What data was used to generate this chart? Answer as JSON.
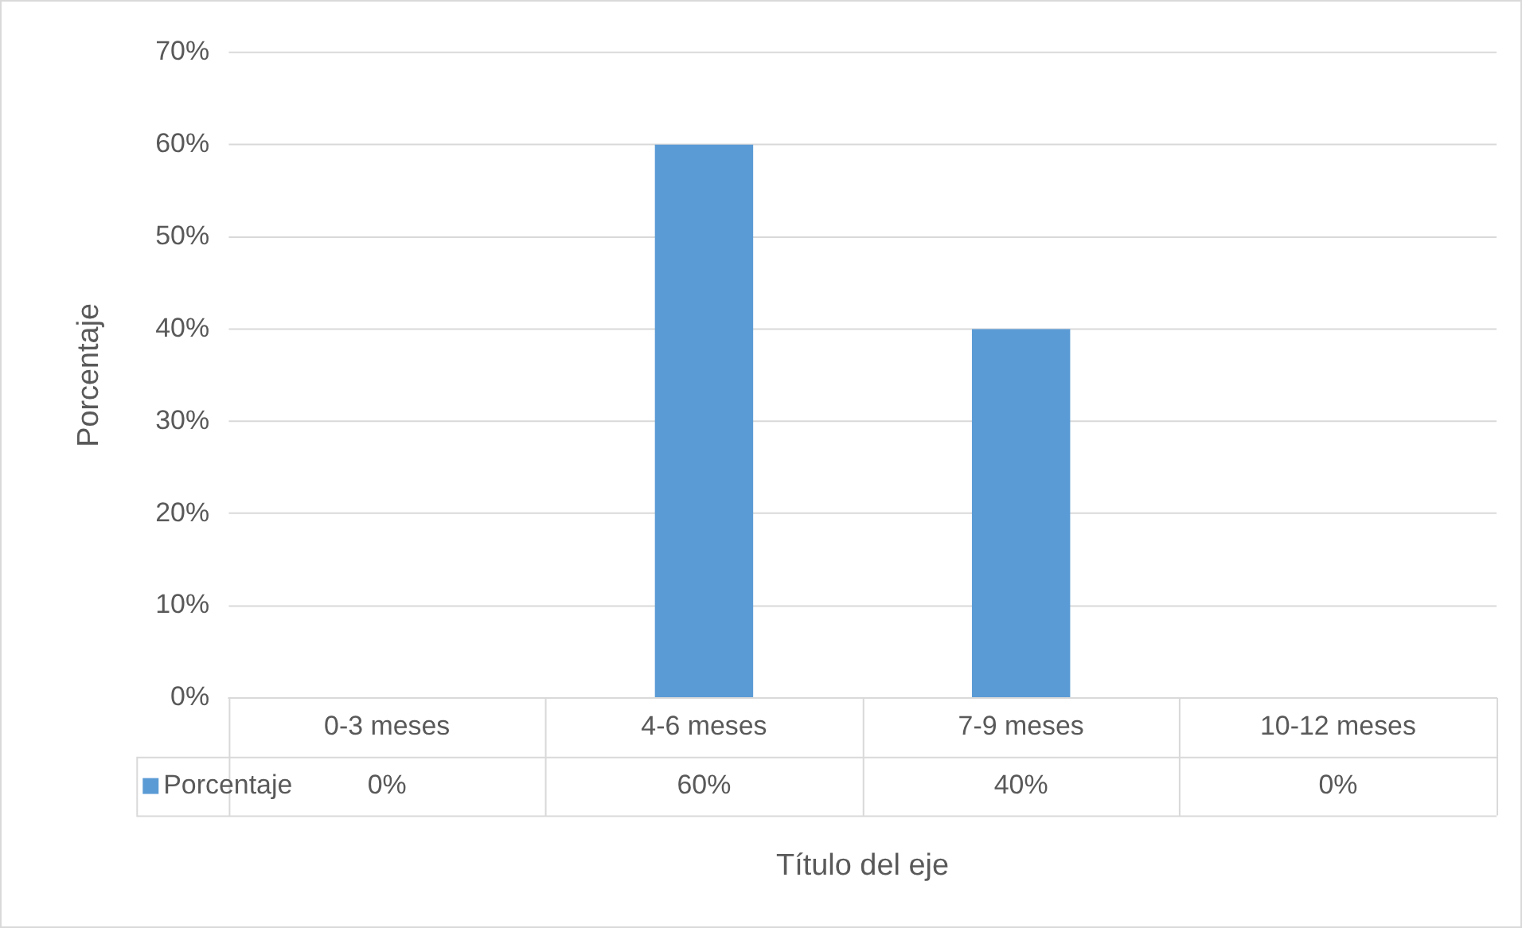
{
  "chart_data": {
    "type": "bar",
    "xlabel": "Título del eje",
    "ylabel": "Porcentaje",
    "categories": [
      "0-3 meses",
      "4-6 meses",
      "7-9 meses",
      "10-12 meses"
    ],
    "series": [
      {
        "name": "Porcentaje",
        "color": "#5b9bd5",
        "values": [
          0,
          60,
          40,
          0
        ],
        "value_labels": [
          "0%",
          "60%",
          "40%",
          "0%"
        ]
      }
    ],
    "ylim": [
      0,
      70
    ],
    "yticks": [
      {
        "value": 0,
        "label": "0%"
      },
      {
        "value": 10,
        "label": "10%"
      },
      {
        "value": 20,
        "label": "20%"
      },
      {
        "value": 30,
        "label": "30%"
      },
      {
        "value": 40,
        "label": "40%"
      },
      {
        "value": 50,
        "label": "50%"
      },
      {
        "value": 60,
        "label": "60%"
      },
      {
        "value": 70,
        "label": "70%"
      }
    ],
    "grid": "y",
    "legend": "bottom"
  }
}
